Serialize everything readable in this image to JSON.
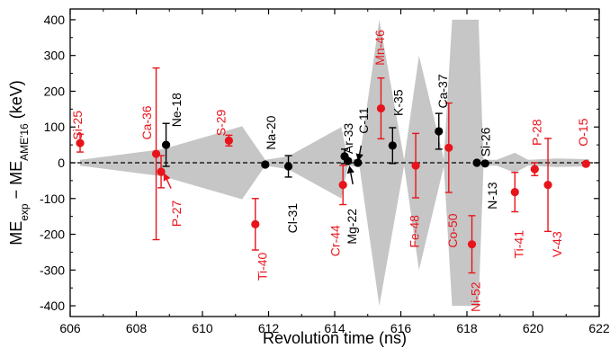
{
  "chart_data": {
    "type": "scatter",
    "xlabel": "Revolution time (ns)",
    "ylabel_main": "ME",
    "ylabel_sub1": "exp",
    "ylabel_mid": " − ME",
    "ylabel_sub2": "AME'16",
    "ylabel_unit": " (keV)",
    "xlim": [
      606,
      622
    ],
    "ylim": [
      -430,
      430
    ],
    "xticks": [
      606,
      608,
      610,
      612,
      614,
      616,
      618,
      620,
      622
    ],
    "yticks": [
      -400,
      -300,
      -200,
      -100,
      0,
      100,
      200,
      300,
      400
    ],
    "reference_line_y": 0,
    "colors": {
      "red": "#e8141b",
      "black": "#000000",
      "band": "#c6c6c6"
    },
    "band": [
      [
        606.3,
        -8
      ],
      [
        606.3,
        8
      ],
      [
        608.8,
        38
      ],
      [
        611.2,
        102
      ],
      [
        611.9,
        8
      ],
      [
        612.6,
        18
      ],
      [
        614.2,
        100
      ],
      [
        614.4,
        8
      ],
      [
        614.75,
        12
      ],
      [
        615.35,
        400
      ],
      [
        616.1,
        8
      ],
      [
        616.55,
        300
      ],
      [
        617.3,
        10
      ],
      [
        617.55,
        400
      ],
      [
        618.35,
        400
      ],
      [
        618.5,
        8
      ],
      [
        618.9,
        8
      ],
      [
        619.45,
        28
      ],
      [
        619.85,
        8
      ],
      [
        620.7,
        12
      ],
      [
        621.7,
        10
      ],
      [
        621.7,
        -10
      ],
      [
        620.7,
        -12
      ],
      [
        619.85,
        -8
      ],
      [
        619.45,
        -28
      ],
      [
        618.9,
        -8
      ],
      [
        618.5,
        -8
      ],
      [
        618.35,
        -400
      ],
      [
        617.55,
        -400
      ],
      [
        617.3,
        -10
      ],
      [
        616.55,
        -300
      ],
      [
        616.1,
        -8
      ],
      [
        615.35,
        -400
      ],
      [
        614.75,
        -12
      ],
      [
        614.4,
        -8
      ],
      [
        614.2,
        -100
      ],
      [
        612.6,
        -18
      ],
      [
        611.9,
        -8
      ],
      [
        611.2,
        -102
      ],
      [
        608.8,
        -38
      ],
      [
        606.3,
        -8
      ]
    ],
    "points": [
      {
        "name": "Si-25",
        "x": 606.3,
        "y": 55,
        "err": 25,
        "color": "red"
      },
      {
        "name": "Ca-36",
        "x": 608.6,
        "y": 25,
        "err": 240,
        "color": "red"
      },
      {
        "name": "P-27",
        "x": 608.75,
        "y": -25,
        "err": 45,
        "color": "red"
      },
      {
        "name": "Ne-18",
        "x": 608.9,
        "y": 50,
        "err": 60,
        "color": "black"
      },
      {
        "name": "S-29",
        "x": 610.8,
        "y": 62,
        "err": 15,
        "color": "red"
      },
      {
        "name": "Na-20",
        "x": 611.9,
        "y": -5,
        "err": 5,
        "color": "black"
      },
      {
        "name": "Ti-40",
        "x": 611.6,
        "y": -172,
        "err": 72,
        "color": "red"
      },
      {
        "name": "Cl-31",
        "x": 612.6,
        "y": -10,
        "err": 30,
        "color": "black"
      },
      {
        "name": "Ar-33",
        "x": 614.3,
        "y": 18,
        "err": 20,
        "color": "black"
      },
      {
        "name": "Cr-44",
        "x": 614.25,
        "y": -62,
        "err": 55,
        "color": "red"
      },
      {
        "name": "Mg-22",
        "x": 614.4,
        "y": 5,
        "err": 6,
        "color": "black"
      },
      {
        "name": "C-11",
        "x": 614.7,
        "y": 0,
        "err": 5,
        "color": "black"
      },
      {
        "name": "Mn-46",
        "x": 615.4,
        "y": 152,
        "err": 85,
        "color": "red"
      },
      {
        "name": "K-35",
        "x": 615.75,
        "y": 48,
        "err": 50,
        "color": "black"
      },
      {
        "name": "Fe-48",
        "x": 616.45,
        "y": -8,
        "err": 90,
        "color": "red"
      },
      {
        "name": "Ca-37",
        "x": 617.15,
        "y": 88,
        "err": 50,
        "color": "black"
      },
      {
        "name": "Co-50",
        "x": 617.45,
        "y": 42,
        "err": 125,
        "color": "red"
      },
      {
        "name": "Si-26",
        "x": 618.3,
        "y": 0,
        "err": 4,
        "color": "black"
      },
      {
        "name": "N-13",
        "x": 618.55,
        "y": -2,
        "err": 3,
        "color": "black"
      },
      {
        "name": "Ni-52",
        "x": 618.15,
        "y": -228,
        "err": 80,
        "color": "red"
      },
      {
        "name": "Ti-41",
        "x": 619.45,
        "y": -82,
        "err": 55,
        "color": "red"
      },
      {
        "name": "P-28",
        "x": 620.05,
        "y": -18,
        "err": 18,
        "color": "red"
      },
      {
        "name": "V-43",
        "x": 620.45,
        "y": -62,
        "err": 130,
        "color": "red"
      },
      {
        "name": "O-15",
        "x": 621.6,
        "y": -3,
        "err": 5,
        "color": "red"
      }
    ],
    "labels": [
      {
        "text": "Si-25",
        "x": 606.25,
        "y": 105,
        "rotate": true,
        "color": "red"
      },
      {
        "text": "Ca-36",
        "x": 608.35,
        "y": 112,
        "rotate": true,
        "color": "red"
      },
      {
        "text": "Ne-18",
        "x": 609.25,
        "y": 148,
        "rotate": true,
        "color": "black"
      },
      {
        "text": "P-27",
        "x": 609.25,
        "y": -142,
        "rotate": true,
        "color": "red"
      },
      {
        "text": "S-29",
        "x": 610.6,
        "y": 112,
        "rotate": true,
        "color": "red"
      },
      {
        "text": "Na-20",
        "x": 612.1,
        "y": 84,
        "rotate": true,
        "color": "black"
      },
      {
        "text": "Ti-40",
        "x": 611.85,
        "y": -290,
        "rotate": true,
        "color": "red"
      },
      {
        "text": "Cl-31",
        "x": 612.75,
        "y": -155,
        "rotate": true,
        "color": "black"
      },
      {
        "text": "Ar-33",
        "x": 614.45,
        "y": 68,
        "rotate": true,
        "color": "black"
      },
      {
        "text": "C-11",
        "x": 614.9,
        "y": 118,
        "rotate": true,
        "color": "black"
      },
      {
        "text": "Cr-44",
        "x": 614.05,
        "y": -218,
        "rotate": true,
        "color": "red"
      },
      {
        "text": "Mg-22",
        "x": 614.55,
        "y": -178,
        "rotate": true,
        "color": "black"
      },
      {
        "text": "Mn-46",
        "x": 615.4,
        "y": 322,
        "rotate": true,
        "color": "red"
      },
      {
        "text": "K-35",
        "x": 615.95,
        "y": 168,
        "rotate": true,
        "color": "black"
      },
      {
        "text": "Ca-37",
        "x": 617.3,
        "y": 200,
        "rotate": true,
        "color": "black"
      },
      {
        "text": "Fe-48",
        "x": 616.45,
        "y": -192,
        "rotate": true,
        "color": "red"
      },
      {
        "text": "Co-50",
        "x": 617.6,
        "y": -190,
        "rotate": true,
        "color": "red"
      },
      {
        "text": "Si-26",
        "x": 618.6,
        "y": 58,
        "rotate": true,
        "color": "black"
      },
      {
        "text": "N-13",
        "x": 618.8,
        "y": -92,
        "rotate": true,
        "color": "black"
      },
      {
        "text": "Ni-52",
        "x": 618.3,
        "y": -375,
        "rotate": true,
        "color": "red"
      },
      {
        "text": "Ti-41",
        "x": 619.6,
        "y": -228,
        "rotate": true,
        "color": "red"
      },
      {
        "text": "P-28",
        "x": 620.15,
        "y": 85,
        "rotate": true,
        "color": "red"
      },
      {
        "text": "V-43",
        "x": 620.75,
        "y": -228,
        "rotate": true,
        "color": "red"
      },
      {
        "text": "O-15",
        "x": 621.55,
        "y": 85,
        "rotate": true,
        "color": "red"
      }
    ],
    "arrows": [
      {
        "from": [
          609.05,
          -72
        ],
        "to": [
          608.85,
          -32
        ],
        "color": "red"
      },
      {
        "from": [
          614.55,
          -60
        ],
        "to": [
          614.45,
          -12
        ],
        "color": "black"
      },
      {
        "from": [
          614.8,
          48
        ],
        "to": [
          614.72,
          8
        ],
        "color": "black"
      }
    ]
  }
}
